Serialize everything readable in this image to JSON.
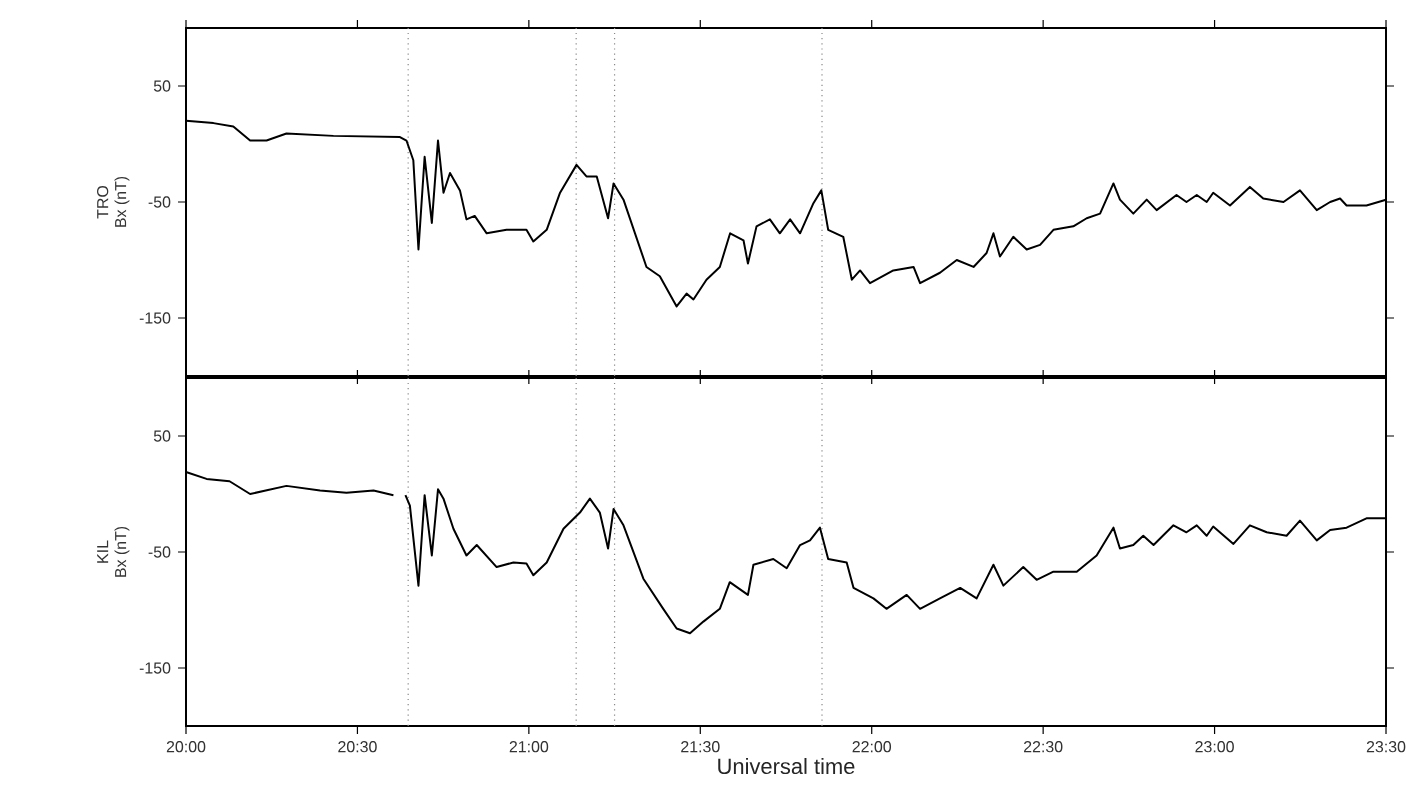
{
  "chart_data": [
    {
      "type": "line",
      "ylabel": "Bx (nT)",
      "annotations": [
        "TRO"
      ],
      "tick_labels": "y",
      "grid": false,
      "xlim": [
        20,
        23.5
      ],
      "ylim": [
        -200,
        100
      ],
      "xticks": [
        {
          "value": 20,
          "label": null
        },
        {
          "value": 20.5,
          "label": null
        },
        {
          "value": 21,
          "label": null
        },
        {
          "value": 21.5,
          "label": null
        },
        {
          "value": 22,
          "label": null
        },
        {
          "value": 22.5,
          "label": null
        },
        {
          "value": 23,
          "label": null
        },
        {
          "value": 23.5,
          "label": null
        }
      ],
      "yticks": [
        50,
        -50,
        -150
      ],
      "x": [
        20.0,
        20.08,
        20.138,
        20.187,
        20.235,
        20.293,
        20.43,
        20.624,
        20.643,
        20.663,
        20.678,
        20.696,
        20.717,
        20.735,
        20.751,
        20.77,
        20.799,
        20.818,
        20.842,
        20.877,
        20.935,
        20.993,
        21.013,
        21.052,
        21.091,
        21.139,
        21.168,
        21.198,
        21.231,
        21.247,
        21.276,
        21.343,
        21.382,
        21.431,
        21.46,
        21.48,
        21.518,
        21.557,
        21.587,
        21.626,
        21.639,
        21.664,
        21.703,
        21.732,
        21.762,
        21.791,
        21.83,
        21.853,
        21.873,
        21.917,
        21.942,
        21.966,
        21.995,
        22.063,
        22.122,
        22.141,
        22.199,
        22.248,
        22.297,
        22.335,
        22.355,
        22.374,
        22.413,
        22.452,
        22.491,
        22.53,
        22.588,
        22.627,
        22.666,
        22.705,
        22.724,
        22.763,
        22.802,
        22.831,
        22.889,
        22.918,
        22.948,
        22.977,
        22.996,
        23.045,
        23.103,
        23.142,
        23.201,
        23.249,
        23.298,
        23.337,
        23.366,
        23.385,
        23.443,
        23.5
      ],
      "series": [
        {
          "color": "#000000",
          "line_style": "solid",
          "values": [
            20,
            18,
            15,
            3,
            3,
            9,
            7,
            6,
            3,
            -14,
            -91,
            -11,
            -68,
            3,
            -42,
            -25,
            -40,
            -65,
            -62,
            -77,
            -74,
            -74,
            -84,
            -74,
            -42,
            -18,
            -28,
            -28,
            -64,
            -34,
            -48,
            -106,
            -114,
            -140,
            -129,
            -134,
            -117,
            -106,
            -77,
            -83,
            -103,
            -71,
            -65,
            -77,
            -65,
            -77,
            -51,
            -40,
            -74,
            -80,
            -117,
            -109,
            -120,
            -109,
            -106,
            -120,
            -111,
            -100,
            -106,
            -94,
            -77,
            -97,
            -80,
            -91,
            -87,
            -74,
            -71,
            -64,
            -60,
            -34,
            -48,
            -60,
            -48,
            -57,
            -44,
            -50,
            -44,
            -50,
            -42,
            -53,
            -37,
            -47,
            -50,
            -40,
            -57,
            -50,
            -47,
            -53,
            -53,
            -48
          ]
        }
      ],
      "ref_lines": [
        {
          "axis": "x",
          "value": 20.648,
          "color": "#888888",
          "line_style": "dotted"
        },
        {
          "axis": "x",
          "value": 21.138,
          "color": "#888888",
          "line_style": "dotted"
        },
        {
          "axis": "x",
          "value": 21.25,
          "color": "#888888",
          "line_style": "dotted"
        },
        {
          "axis": "x",
          "value": 21.855,
          "color": "#888888",
          "line_style": "dotted"
        }
      ]
    },
    {
      "type": "line",
      "ylabel": "Bx (nT)",
      "annotations": [
        "KIL"
      ],
      "xlabel": "Universal time",
      "grid": false,
      "xlim": [
        20,
        23.5
      ],
      "ylim": [
        -200,
        100
      ],
      "xticks": [
        {
          "value": 20,
          "label": "20:00"
        },
        {
          "value": 20.5,
          "label": "20:30"
        },
        {
          "value": 21,
          "label": "21:00"
        },
        {
          "value": 21.5,
          "label": "21:30"
        },
        {
          "value": 22,
          "label": "22:00"
        },
        {
          "value": 22.5,
          "label": "22:30"
        },
        {
          "value": 23,
          "label": "23:00"
        },
        {
          "value": 23.5,
          "label": "23:30"
        }
      ],
      "yticks": [
        50,
        -50,
        -150
      ],
      "x": [
        20.0,
        20.06,
        20.127,
        20.187,
        20.293,
        20.391,
        20.468,
        20.547,
        20.605,
        20.625,
        20.64,
        20.653,
        20.678,
        20.696,
        20.717,
        20.735,
        20.751,
        20.78,
        20.818,
        20.848,
        20.906,
        20.955,
        20.993,
        21.013,
        21.052,
        21.101,
        21.149,
        21.178,
        21.207,
        21.231,
        21.247,
        21.276,
        21.334,
        21.392,
        21.431,
        21.47,
        21.509,
        21.557,
        21.586,
        21.639,
        21.655,
        21.713,
        21.752,
        21.791,
        21.82,
        21.849,
        21.873,
        21.927,
        21.947,
        22.005,
        22.043,
        22.102,
        22.141,
        22.199,
        22.258,
        22.306,
        22.355,
        22.384,
        22.442,
        22.481,
        22.53,
        22.598,
        22.656,
        22.705,
        22.724,
        22.763,
        22.792,
        22.822,
        22.88,
        22.918,
        22.948,
        22.977,
        22.996,
        23.055,
        23.103,
        23.152,
        23.21,
        23.249,
        23.298,
        23.337,
        23.385,
        23.443,
        23.5
      ],
      "series": [
        {
          "color": "#000000",
          "line_style": "solid",
          "values": [
            19,
            13,
            11,
            0,
            7,
            3,
            1,
            3,
            -1,
            null,
            -1,
            -10,
            -79,
            -1,
            -53,
            4,
            -4,
            -30,
            -53,
            -44,
            -63,
            -59,
            -60,
            -70,
            -59,
            -30,
            -16,
            -4,
            -16,
            -47,
            -13,
            -27,
            -73,
            -99,
            -116,
            -120,
            -110,
            -99,
            -76,
            -87,
            -61,
            -56,
            -64,
            -44,
            -40,
            -29,
            -56,
            -59,
            -81,
            -90,
            -99,
            -87,
            -99,
            -90,
            -81,
            -90,
            -61,
            -79,
            -63,
            -74,
            -67,
            -67,
            -53,
            -29,
            -47,
            -44,
            -36,
            -44,
            -27,
            -33,
            -27,
            -36,
            -28,
            -43,
            -27,
            -33,
            -36,
            -23,
            -40,
            -31,
            -29,
            -21,
            -21
          ]
        }
      ],
      "ref_lines": [
        {
          "axis": "x",
          "value": 20.648,
          "color": "#888888",
          "line_style": "dotted"
        },
        {
          "axis": "x",
          "value": 21.138,
          "color": "#888888",
          "line_style": "dotted"
        },
        {
          "axis": "x",
          "value": 21.25,
          "color": "#888888",
          "line_style": "dotted"
        },
        {
          "axis": "x",
          "value": 21.855,
          "color": "#888888",
          "line_style": "dotted"
        }
      ]
    }
  ]
}
